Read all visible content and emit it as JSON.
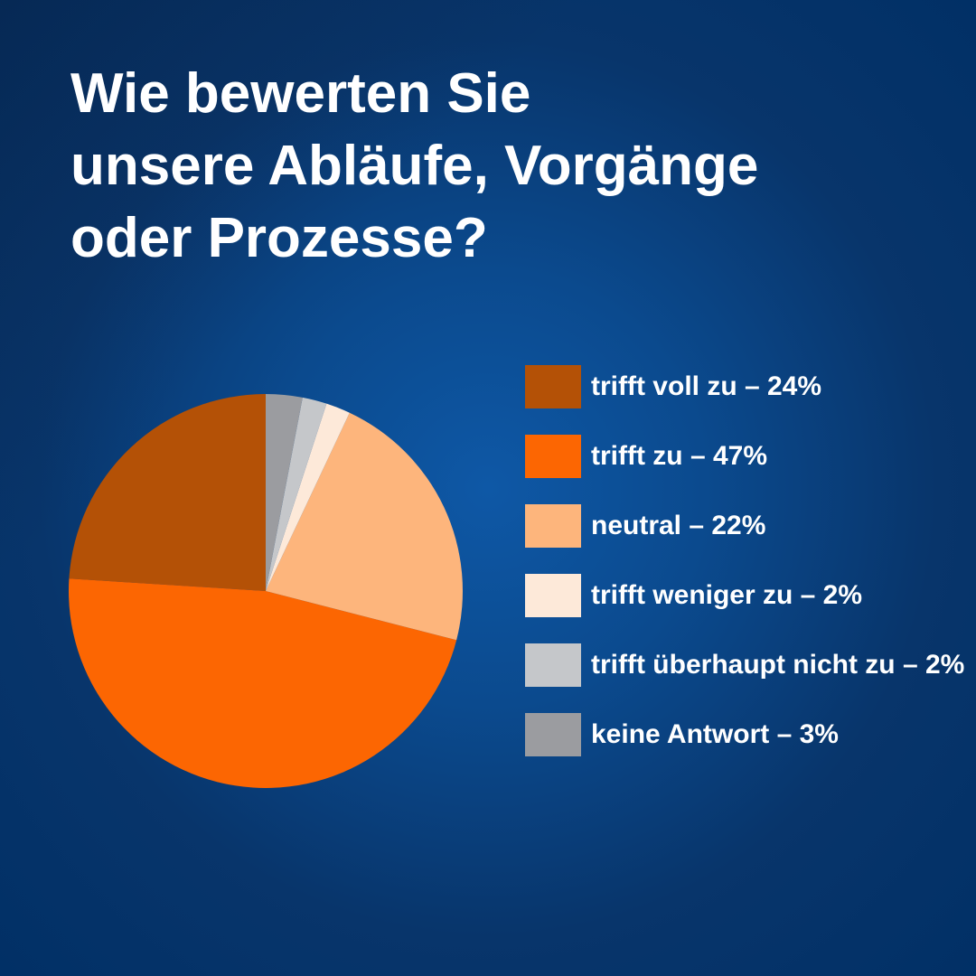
{
  "title": {
    "text": "Wie bewerten Sie unsere Abläufe, Vorgänge oder Prozesse?",
    "lines": [
      "Wie bewerten Sie",
      "unsere Abläufe, Vorgänge",
      "oder Prozesse?"
    ],
    "color": "#ffffff"
  },
  "background": {
    "center_color": "#0e58a6",
    "edge_color": "#013066"
  },
  "chart_data": {
    "type": "pie",
    "title": "Wie bewerten Sie unsere Abläufe, Vorgänge oder Prozesse?",
    "start_angle_deg": -90,
    "direction": "counterclockwise",
    "legend_position": "right",
    "slices": [
      {
        "label": "trifft voll zu",
        "value_pct": 24,
        "color": "#b45106",
        "legend_text": "trifft voll zu – 24%"
      },
      {
        "label": "trifft zu",
        "value_pct": 47,
        "color": "#fc6602",
        "legend_text": "trifft zu – 47%"
      },
      {
        "label": "neutral",
        "value_pct": 22,
        "color": "#fdb57c",
        "legend_text": "neutral – 22%"
      },
      {
        "label": "trifft weniger zu",
        "value_pct": 2,
        "color": "#fde9d9",
        "legend_text": "trifft weniger zu – 2%"
      },
      {
        "label": "trifft überhaupt nicht zu",
        "value_pct": 2,
        "color": "#c5c7ca",
        "legend_text": "trifft überhaupt nicht zu – 2%"
      },
      {
        "label": "keine Antwort",
        "value_pct": 3,
        "color": "#9b9ca0",
        "legend_text": "keine Antwort – 3%"
      }
    ]
  }
}
